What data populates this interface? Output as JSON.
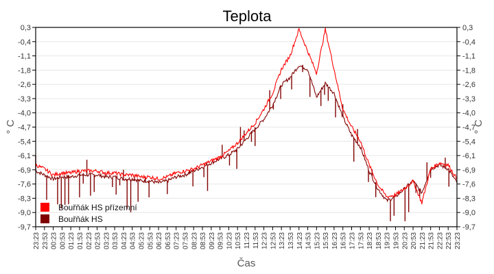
{
  "chart_data": {
    "type": "line",
    "title": "Teplota",
    "xlabel": "Čas",
    "ylabel": "° C",
    "ylabel_right": "° C",
    "ylim": [
      -9.7,
      0.3
    ],
    "yticks": [
      "0,3",
      "-0,4",
      "-1,1",
      "-1,8",
      "-2,6",
      "-3,3",
      "-4,0",
      "-4,7",
      "-5,4",
      "-6,1",
      "-6,9",
      "-7,6",
      "-8,3",
      "-9,0",
      "-9,7"
    ],
    "grid": true,
    "legend_position": "lower-left-inside",
    "x": [
      "23:23",
      "23:53",
      "00:23",
      "00:53",
      "01:23",
      "01:53",
      "02:23",
      "02:53",
      "03:23",
      "03:53",
      "04:23",
      "04:53",
      "05:23",
      "05:53",
      "06:23",
      "06:53",
      "07:23",
      "07:53",
      "08:23",
      "08:53",
      "09:23",
      "09:53",
      "10:23",
      "10:53",
      "11:23",
      "11:53",
      "12:23",
      "12:53",
      "13:23",
      "13:53",
      "14:23",
      "14:53",
      "15:23",
      "15:53",
      "16:23",
      "16:53",
      "17:23",
      "17:53",
      "18:23",
      "18:53",
      "19:23",
      "19:53",
      "20:23",
      "20:53",
      "21:23",
      "21:53",
      "22:23",
      "22:53",
      "23:23"
    ],
    "series": [
      {
        "name": "Bouřňák HS přízemní",
        "color": "#ff0000",
        "values": [
          -6.6,
          -6.8,
          -7.1,
          -7.0,
          -7.0,
          -6.9,
          -6.9,
          -6.9,
          -7.0,
          -7.0,
          -7.1,
          -7.1,
          -7.2,
          -7.2,
          -7.3,
          -7.2,
          -7.0,
          -6.9,
          -6.8,
          -6.6,
          -6.4,
          -6.2,
          -5.9,
          -5.5,
          -5.0,
          -4.5,
          -3.8,
          -3.0,
          -1.8,
          -1.1,
          0.2,
          -0.9,
          -2.0,
          0.2,
          -1.8,
          -3.8,
          -4.7,
          -5.4,
          -6.6,
          -7.6,
          -8.2,
          -8.1,
          -7.8,
          -7.4,
          -8.5,
          -6.8,
          -6.5,
          -6.6,
          -7.3
        ]
      },
      {
        "name": "Bouřňák HS",
        "color": "#800000",
        "values": [
          -6.9,
          -7.1,
          -7.3,
          -7.2,
          -7.2,
          -7.1,
          -7.1,
          -7.1,
          -7.2,
          -7.2,
          -7.3,
          -7.3,
          -7.4,
          -7.4,
          -7.5,
          -7.4,
          -7.2,
          -7.1,
          -6.9,
          -6.7,
          -6.5,
          -6.3,
          -6.1,
          -5.8,
          -5.3,
          -4.8,
          -4.3,
          -3.6,
          -2.6,
          -2.2,
          -1.6,
          -1.8,
          -3.2,
          -2.5,
          -3.0,
          -4.2,
          -5.1,
          -5.7,
          -6.9,
          -7.8,
          -8.4,
          -8.2,
          -7.8,
          -7.4,
          -8.0,
          -6.8,
          -6.6,
          -6.8,
          -7.5
        ]
      }
    ]
  },
  "legend": {
    "items": [
      {
        "label": "Bouřňák HS přízemní",
        "color": "#ff0000"
      },
      {
        "label": "Bouřňák HS",
        "color": "#800000"
      }
    ]
  }
}
